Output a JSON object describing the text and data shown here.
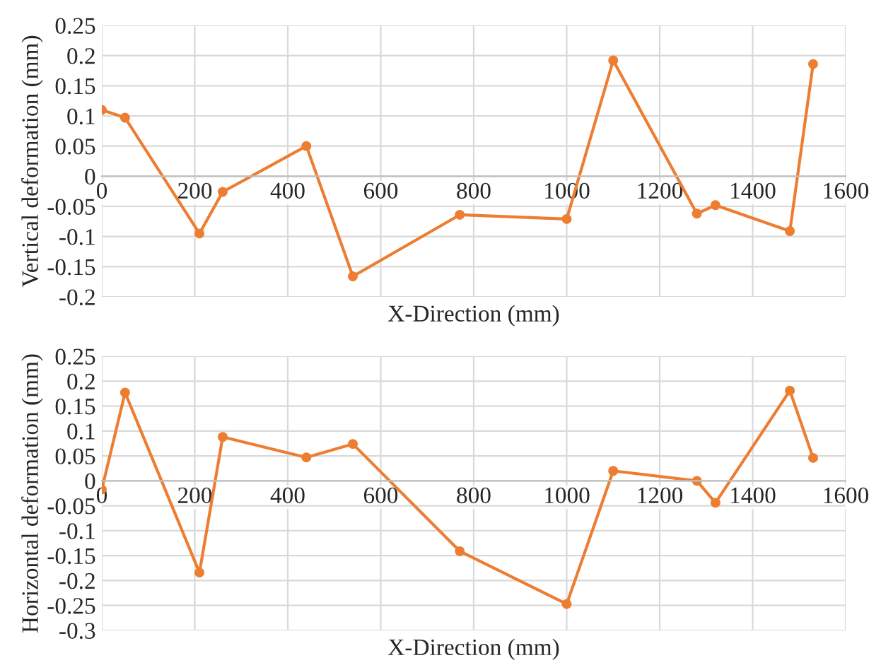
{
  "chart_data": [
    {
      "type": "line",
      "xlabel": "X-Direction (mm)",
      "ylabel": "Vertical deformation (mm)",
      "x": [
        0,
        50,
        210,
        260,
        440,
        540,
        770,
        1000,
        1100,
        1280,
        1320,
        1480,
        1530
      ],
      "series": [
        {
          "color": "#ed7d31",
          "values": [
            0.11,
            0.097,
            -0.095,
            -0.026,
            0.05,
            -0.166,
            -0.064,
            -0.071,
            0.192,
            -0.062,
            -0.048,
            -0.091,
            0.186
          ]
        }
      ],
      "xlim": [
        0,
        1600
      ],
      "xticks": [
        0,
        200,
        400,
        600,
        800,
        1000,
        1200,
        1400,
        1600
      ],
      "ylim": [
        -0.2,
        0.25
      ],
      "yticks": [
        -0.2,
        -0.15,
        -0.1,
        -0.05,
        0,
        0.05,
        0.1,
        0.15,
        0.2,
        0.25
      ],
      "grid": true,
      "marker": "circle",
      "line_style": "solid"
    },
    {
      "type": "line",
      "xlabel": "X-Direction (mm)",
      "ylabel": "Horizontal deformation (mm)",
      "x": [
        0,
        50,
        210,
        260,
        440,
        540,
        770,
        1000,
        1100,
        1280,
        1320,
        1480,
        1530
      ],
      "series": [
        {
          "color": "#ed7d31",
          "values": [
            -0.017,
            0.177,
            -0.184,
            0.088,
            0.047,
            0.074,
            -0.141,
            -0.247,
            0.02,
            0.0,
            -0.044,
            0.181,
            0.046
          ]
        }
      ],
      "xlim": [
        0,
        1600
      ],
      "xticks": [
        0,
        200,
        400,
        600,
        800,
        1000,
        1200,
        1400,
        1600
      ],
      "ylim": [
        -0.3,
        0.25
      ],
      "yticks": [
        -0.3,
        -0.25,
        -0.2,
        -0.15,
        -0.1,
        -0.05,
        0,
        0.05,
        0.1,
        0.15,
        0.2,
        0.25
      ],
      "grid": true,
      "marker": "circle",
      "line_style": "solid"
    }
  ]
}
